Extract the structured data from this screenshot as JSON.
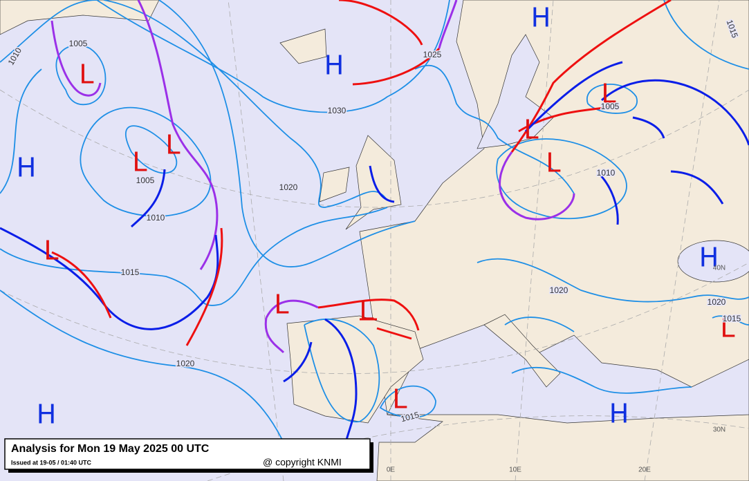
{
  "caption": {
    "title": "Analysis for Mon 19 May 2025 00 UTC",
    "issued": "Issued at 19-05 / 01:40 UTC",
    "copyright": "@ copyright KNMI"
  },
  "pressure_centers": [
    "H",
    "H",
    "L",
    "L",
    "L",
    "H",
    "L",
    "L",
    "L",
    "L",
    "H",
    "L",
    "L",
    "L",
    "H",
    "H",
    "L"
  ],
  "isobar_labels": [
    "1005",
    "1010",
    "1030",
    "1020",
    "1005",
    "1010",
    "1015",
    "1020",
    "1025",
    "1005",
    "1010",
    "1020",
    "1020",
    "1015",
    "1015",
    "1015"
  ],
  "grid_labels": [
    "0E",
    "10E",
    "20E",
    "40N",
    "30N"
  ]
}
